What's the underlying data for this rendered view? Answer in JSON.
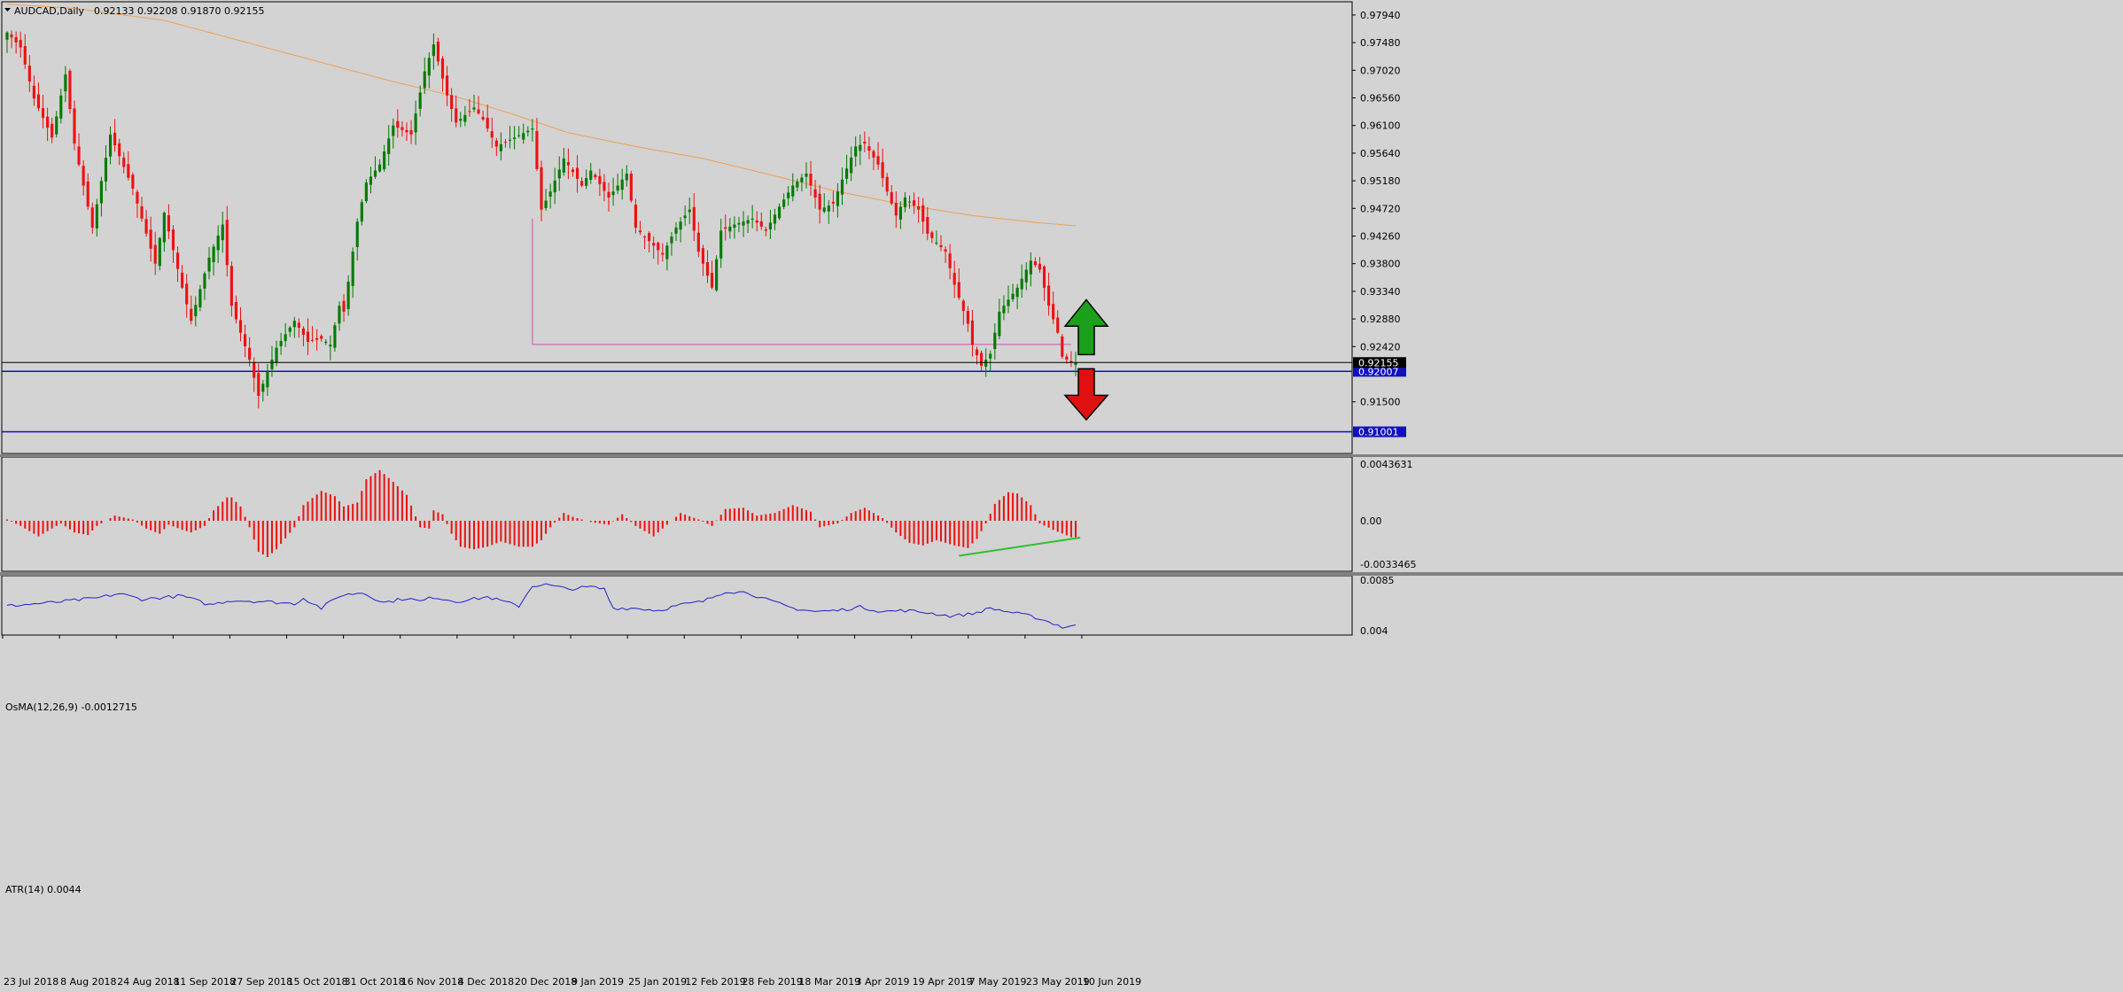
{
  "header": {
    "symbol": "AUDCAD,Daily",
    "ohlc": "0.92133 0.92208 0.91870 0.92155"
  },
  "colors": {
    "background": "#d3d3d3",
    "bull": "#007a00",
    "bear": "#ee1111",
    "ma": "#f0a050",
    "osma": "#ee1111",
    "atr": "#2020d0",
    "hline": "#1010c0",
    "support": "#d050b0",
    "trend": "#30c030",
    "arrow_up": "#1aa01a",
    "arrow_down": "#e01010"
  },
  "chart_data": [
    {
      "type": "candlestick",
      "title": "AUDCAD,Daily",
      "ohlc_label": "0.92133 0.92208 0.91870 0.92155",
      "ylim": [
        0.9064,
        0.9816
      ],
      "yticks": [
        "0.97940",
        "0.97480",
        "0.97020",
        "0.96560",
        "0.96100",
        "0.95640",
        "0.95180",
        "0.94720",
        "0.94260",
        "0.93800",
        "0.93340",
        "0.92880",
        "0.92420",
        "0.91500"
      ],
      "x_labels": [
        "23 Jul 2018",
        "8 Aug 2018",
        "24 Aug 2018",
        "11 Sep 2018",
        "27 Sep 2018",
        "15 Oct 2018",
        "31 Oct 2018",
        "16 Nov 2018",
        "4 Dec 2018",
        "20 Dec 2018",
        "9 Jan 2019",
        "25 Jan 2019",
        "12 Feb 2019",
        "28 Feb 2019",
        "18 Mar 2019",
        "3 Apr 2019",
        "19 Apr 2019",
        "7 May 2019",
        "23 May 2019",
        "10 Jun 2019"
      ],
      "x_range": [
        "2018-07-23",
        "2019-06-20"
      ],
      "close_anchors": [
        [
          "2018-07-23",
          0.9765
        ],
        [
          "2018-07-26",
          0.974
        ],
        [
          "2018-07-31",
          0.9655
        ],
        [
          "2018-08-06",
          0.959
        ],
        [
          "2018-08-09",
          0.9695
        ],
        [
          "2018-08-13",
          0.958
        ],
        [
          "2018-08-17",
          0.944
        ],
        [
          "2018-08-23",
          0.9595
        ],
        [
          "2018-08-30",
          0.9505
        ],
        [
          "2018-09-06",
          0.938
        ],
        [
          "2018-09-10",
          0.9465
        ],
        [
          "2018-09-14",
          0.934
        ],
        [
          "2018-09-18",
          0.9285
        ],
        [
          "2018-09-24",
          0.939
        ],
        [
          "2018-09-27",
          0.9445
        ],
        [
          "2018-10-01",
          0.931
        ],
        [
          "2018-10-05",
          0.922
        ],
        [
          "2018-10-09",
          0.916
        ],
        [
          "2018-10-15",
          0.924
        ],
        [
          "2018-10-19",
          0.9285
        ],
        [
          "2018-10-24",
          0.925
        ],
        [
          "2018-10-29",
          0.9255
        ],
        [
          "2018-10-31",
          0.9245
        ],
        [
          "2018-11-02",
          0.931
        ],
        [
          "2018-11-05",
          0.93
        ],
        [
          "2018-11-08",
          0.945
        ],
        [
          "2018-11-12",
          0.9515
        ],
        [
          "2018-11-15",
          0.9545
        ],
        [
          "2018-11-20",
          0.961
        ],
        [
          "2018-11-26",
          0.9595
        ],
        [
          "2018-11-29",
          0.97
        ],
        [
          "2018-12-03",
          0.9745
        ],
        [
          "2018-12-06",
          0.966
        ],
        [
          "2018-12-10",
          0.9615
        ],
        [
          "2018-12-14",
          0.964
        ],
        [
          "2018-12-18",
          0.962
        ],
        [
          "2018-12-21",
          0.9575
        ],
        [
          "2018-12-27",
          0.959
        ],
        [
          "2019-01-02",
          0.9605
        ],
        [
          "2019-01-04",
          0.947
        ],
        [
          "2019-01-08",
          0.95
        ],
        [
          "2019-01-11",
          0.9555
        ],
        [
          "2019-01-17",
          0.951
        ],
        [
          "2019-01-21",
          0.9535
        ],
        [
          "2019-01-25",
          0.949
        ],
        [
          "2019-01-31",
          0.953
        ],
        [
          "2019-02-04",
          0.944
        ],
        [
          "2019-02-08",
          0.941
        ],
        [
          "2019-02-12",
          0.9395
        ],
        [
          "2019-02-15",
          0.944
        ],
        [
          "2019-02-20",
          0.947
        ],
        [
          "2019-02-22",
          0.94
        ],
        [
          "2019-02-27",
          0.934
        ],
        [
          "2019-03-01",
          0.9435
        ],
        [
          "2019-03-06",
          0.9445
        ],
        [
          "2019-03-12",
          0.9455
        ],
        [
          "2019-03-15",
          0.9435
        ],
        [
          "2019-03-20",
          0.9475
        ],
        [
          "2019-03-25",
          0.951
        ],
        [
          "2019-03-28",
          0.953
        ],
        [
          "2019-04-02",
          0.947
        ],
        [
          "2019-04-05",
          0.948
        ],
        [
          "2019-04-09",
          0.952
        ],
        [
          "2019-04-12",
          0.9575
        ],
        [
          "2019-04-16",
          0.958
        ],
        [
          "2019-04-19",
          0.9545
        ],
        [
          "2019-04-23",
          0.95
        ],
        [
          "2019-04-25",
          0.946
        ],
        [
          "2019-04-29",
          0.949
        ],
        [
          "2019-05-02",
          0.947
        ],
        [
          "2019-05-06",
          0.943
        ],
        [
          "2019-05-10",
          0.94
        ],
        [
          "2019-05-14",
          0.9345
        ],
        [
          "2019-05-17",
          0.928
        ],
        [
          "2019-05-20",
          0.9245
        ],
        [
          "2019-05-22",
          0.921
        ],
        [
          "2019-05-24",
          0.923
        ],
        [
          "2019-05-28",
          0.93
        ],
        [
          "2019-05-30",
          0.932
        ],
        [
          "2019-06-03",
          0.934
        ],
        [
          "2019-06-06",
          0.9385
        ],
        [
          "2019-06-10",
          0.937
        ],
        [
          "2019-06-12",
          0.931
        ],
        [
          "2019-06-14",
          0.9265
        ],
        [
          "2019-06-17",
          0.9225
        ],
        [
          "2019-06-19",
          0.92155
        ]
      ],
      "ma_anchors": [
        [
          "2018-07-23",
          0.9812
        ],
        [
          "2018-08-13",
          0.9805
        ],
        [
          "2018-09-10",
          0.9785
        ],
        [
          "2018-10-01",
          0.9755
        ],
        [
          "2018-10-29",
          0.9715
        ],
        [
          "2018-11-19",
          0.9685
        ],
        [
          "2018-12-10",
          0.9658
        ],
        [
          "2018-12-27",
          0.9628
        ],
        [
          "2019-01-14",
          0.9598
        ],
        [
          "2019-02-04",
          0.9575
        ],
        [
          "2019-02-25",
          0.9555
        ],
        [
          "2019-03-18",
          0.9528
        ],
        [
          "2019-04-08",
          0.95
        ],
        [
          "2019-04-29",
          0.9478
        ],
        [
          "2019-05-20",
          0.946
        ],
        [
          "2019-06-10",
          0.9448
        ],
        [
          "2019-06-20",
          0.9443
        ]
      ],
      "current_price": "0.92155",
      "hlines": [
        {
          "price": 0.92007,
          "label": "0.92007"
        },
        {
          "price": 0.91001,
          "label": "0.91001"
        }
      ],
      "support_line": {
        "price": 0.92455,
        "start": "2019-01-02",
        "end": "2019-06-19"
      },
      "arrows": [
        {
          "direction": "up",
          "date": "2019-06-20",
          "from": 0.92285,
          "to": 0.932
        },
        {
          "direction": "down",
          "date": "2019-06-20",
          "from": 0.9205,
          "to": 0.912
        }
      ]
    },
    {
      "type": "bar",
      "title": "OsMA(12,26,9) -0.0012715",
      "ylim": [
        -0.0033465,
        0.0043631
      ],
      "yticks": [
        "0.0043631",
        "0.00",
        "-0.0033465"
      ],
      "anchors": [
        [
          "2018-07-23",
          0.0001
        ],
        [
          "2018-07-26",
          -0.0004
        ],
        [
          "2018-08-01",
          -0.0012
        ],
        [
          "2018-08-03",
          -0.0008
        ],
        [
          "2018-08-08",
          -0.0002
        ],
        [
          "2018-08-13",
          -0.0009
        ],
        [
          "2018-08-16",
          -0.0011
        ],
        [
          "2018-08-20",
          -0.0004
        ],
        [
          "2018-08-24",
          0.0004
        ],
        [
          "2018-08-30",
          0.0001
        ],
        [
          "2018-09-04",
          -0.0006
        ],
        [
          "2018-09-07",
          -0.001
        ],
        [
          "2018-09-11",
          -0.0003
        ],
        [
          "2018-09-14",
          -0.0007
        ],
        [
          "2018-09-18",
          -0.0009
        ],
        [
          "2018-09-21",
          -0.0004
        ],
        [
          "2018-09-25",
          0.0008
        ],
        [
          "2018-09-28",
          0.0018
        ],
        [
          "2018-10-01",
          0.0018
        ],
        [
          "2018-10-03",
          0.0011
        ],
        [
          "2018-10-05",
          -0.0005
        ],
        [
          "2018-10-09",
          -0.0024
        ],
        [
          "2018-10-11",
          -0.0028
        ],
        [
          "2018-10-15",
          -0.0022
        ],
        [
          "2018-10-19",
          -0.0005
        ],
        [
          "2018-10-23",
          0.0012
        ],
        [
          "2018-10-29",
          0.0023
        ],
        [
          "2018-11-01",
          0.0019
        ],
        [
          "2018-11-05",
          0.0011
        ],
        [
          "2018-11-08",
          0.0014
        ],
        [
          "2018-11-12",
          0.0032
        ],
        [
          "2018-11-15",
          0.0039
        ],
        [
          "2018-11-20",
          0.003
        ],
        [
          "2018-11-23",
          0.002
        ],
        [
          "2018-11-28",
          -0.0005
        ],
        [
          "2018-11-30",
          -0.0006
        ],
        [
          "2018-12-03",
          0.0008
        ],
        [
          "2018-12-05",
          0.0005
        ],
        [
          "2018-12-07",
          -0.001
        ],
        [
          "2018-12-11",
          -0.002
        ],
        [
          "2018-12-14",
          -0.0022
        ],
        [
          "2018-12-19",
          -0.002
        ],
        [
          "2018-12-24",
          -0.0016
        ],
        [
          "2018-12-28",
          -0.002
        ],
        [
          "2019-01-02",
          -0.002
        ],
        [
          "2019-01-04",
          -0.0015
        ],
        [
          "2019-01-08",
          -0.0005
        ],
        [
          "2019-01-11",
          0.0006
        ],
        [
          "2019-01-15",
          0.0003
        ],
        [
          "2019-01-21",
          -0.0001
        ],
        [
          "2019-01-25",
          -0.0003
        ],
        [
          "2019-01-30",
          0.0005
        ],
        [
          "2019-02-04",
          -0.0004
        ],
        [
          "2019-02-08",
          -0.0012
        ],
        [
          "2019-02-12",
          -0.0006
        ],
        [
          "2019-02-18",
          0.0006
        ],
        [
          "2019-02-22",
          0.0001
        ],
        [
          "2019-02-27",
          -0.0004
        ],
        [
          "2019-03-04",
          0.0009
        ],
        [
          "2019-03-08",
          0.001
        ],
        [
          "2019-03-13",
          0.0004
        ],
        [
          "2019-03-19",
          0.0006
        ],
        [
          "2019-03-25",
          0.0012
        ],
        [
          "2019-03-29",
          0.0007
        ],
        [
          "2019-04-02",
          -0.0005
        ],
        [
          "2019-04-08",
          -0.0002
        ],
        [
          "2019-04-11",
          0.0006
        ],
        [
          "2019-04-16",
          0.001
        ],
        [
          "2019-04-22",
          0.0002
        ],
        [
          "2019-04-25",
          -0.0009
        ],
        [
          "2019-04-30",
          -0.0017
        ],
        [
          "2019-05-03",
          -0.0019
        ],
        [
          "2019-05-08",
          -0.0015
        ],
        [
          "2019-05-14",
          -0.0019
        ],
        [
          "2019-05-17",
          -0.0021
        ],
        [
          "2019-05-21",
          -0.0014
        ],
        [
          "2019-05-23",
          -0.0002
        ],
        [
          "2019-05-27",
          0.0013
        ],
        [
          "2019-05-30",
          0.0022
        ],
        [
          "2019-06-03",
          0.0021
        ],
        [
          "2019-06-06",
          0.0012
        ],
        [
          "2019-06-10",
          -0.0002
        ],
        [
          "2019-06-13",
          -0.0007
        ],
        [
          "2019-06-19",
          -0.00127
        ]
      ],
      "trendline": {
        "start": "2019-05-15",
        "end": "2019-06-21",
        "from": -0.0027,
        "to": -0.0013
      }
    },
    {
      "type": "line",
      "title": "ATR(14) 0.0044",
      "ylim": [
        0.004,
        0.0085
      ],
      "yticks": [
        "0.0085",
        "0.004"
      ],
      "anchors": [
        [
          "2018-07-23",
          0.0062
        ],
        [
          "2018-08-06",
          0.0065
        ],
        [
          "2018-08-20",
          0.0069
        ],
        [
          "2018-08-27",
          0.0073
        ],
        [
          "2018-09-03",
          0.0068
        ],
        [
          "2018-09-14",
          0.0071
        ],
        [
          "2018-09-24",
          0.0063
        ],
        [
          "2018-10-01",
          0.0067
        ],
        [
          "2018-10-10",
          0.0066
        ],
        [
          "2018-10-19",
          0.0064
        ],
        [
          "2018-10-23",
          0.0069
        ],
        [
          "2018-10-29",
          0.006
        ],
        [
          "2018-11-02",
          0.0071
        ],
        [
          "2018-11-09",
          0.0074
        ],
        [
          "2018-11-16",
          0.0065
        ],
        [
          "2018-11-23",
          0.0069
        ],
        [
          "2018-11-28",
          0.0066
        ],
        [
          "2018-12-03",
          0.007
        ],
        [
          "2018-12-10",
          0.0066
        ],
        [
          "2018-12-19",
          0.007
        ],
        [
          "2018-12-28",
          0.0062
        ],
        [
          "2019-01-02",
          0.008
        ],
        [
          "2019-01-07",
          0.0081
        ],
        [
          "2019-01-14",
          0.0077
        ],
        [
          "2019-01-21",
          0.0079
        ],
        [
          "2019-01-24",
          0.0077
        ],
        [
          "2019-01-28",
          0.006
        ],
        [
          "2019-02-04",
          0.006
        ],
        [
          "2019-02-11",
          0.0058
        ],
        [
          "2019-02-18",
          0.0063
        ],
        [
          "2019-02-25",
          0.0066
        ],
        [
          "2019-03-04",
          0.0075
        ],
        [
          "2019-03-11",
          0.0074
        ],
        [
          "2019-03-14",
          0.0069
        ],
        [
          "2019-03-25",
          0.006
        ],
        [
          "2019-04-01",
          0.0057
        ],
        [
          "2019-04-08",
          0.0058
        ],
        [
          "2019-04-15",
          0.0061
        ],
        [
          "2019-04-22",
          0.0057
        ],
        [
          "2019-04-29",
          0.0058
        ],
        [
          "2019-05-06",
          0.0056
        ],
        [
          "2019-05-13",
          0.0053
        ],
        [
          "2019-05-20",
          0.0055
        ],
        [
          "2019-05-24",
          0.006
        ],
        [
          "2019-05-31",
          0.0056
        ],
        [
          "2019-06-07",
          0.0052
        ],
        [
          "2019-06-14",
          0.0045
        ],
        [
          "2019-06-17",
          0.0043
        ],
        [
          "2019-06-19",
          0.0044
        ]
      ]
    }
  ]
}
